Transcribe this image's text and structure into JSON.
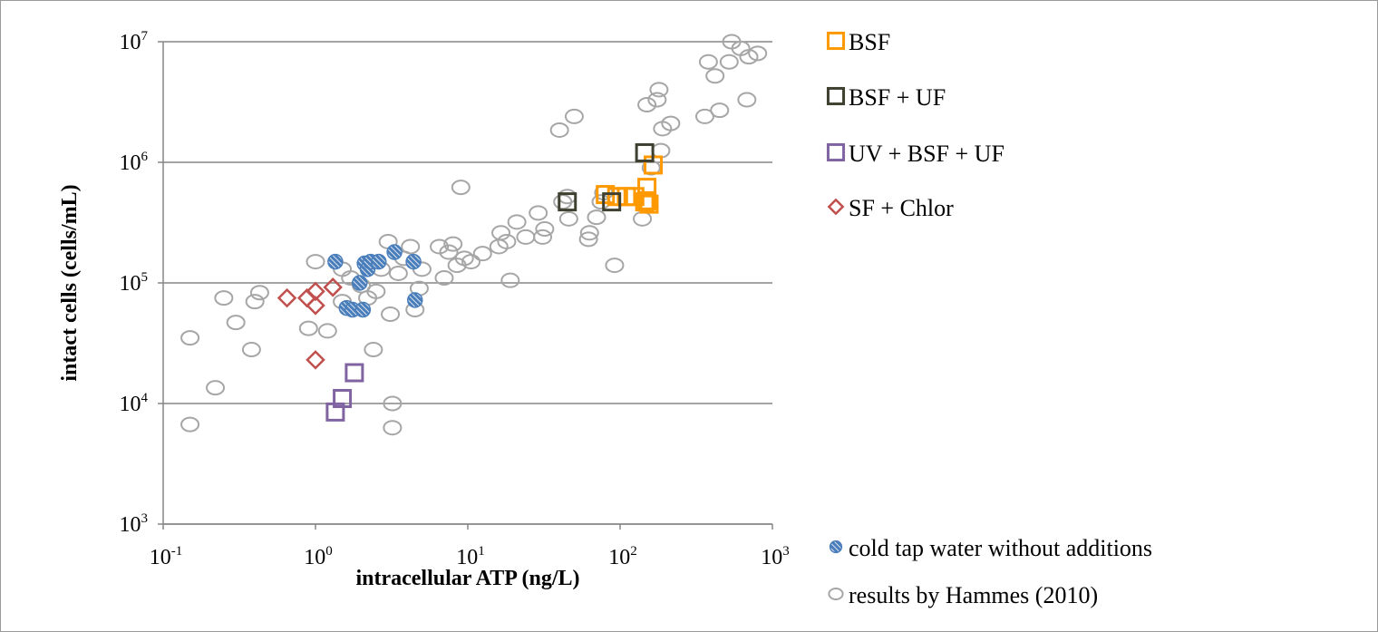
{
  "chart_data": {
    "type": "scatter",
    "xlabel": "intracellular ATP (ng/L)",
    "ylabel": "intact cells (cells/mL)",
    "x_scale": "log",
    "y_scale": "log",
    "xlim": [
      0.1,
      1000
    ],
    "ylim": [
      1000,
      10000000
    ],
    "x_ticks": [
      {
        "base": "10",
        "exp": "-1",
        "value": 0.1
      },
      {
        "base": "10",
        "exp": "0",
        "value": 1
      },
      {
        "base": "10",
        "exp": "1",
        "value": 10
      },
      {
        "base": "10",
        "exp": "2",
        "value": 100
      },
      {
        "base": "10",
        "exp": "3",
        "value": 1000
      }
    ],
    "y_ticks": [
      {
        "base": "10",
        "exp": "3",
        "value": 1000
      },
      {
        "base": "10",
        "exp": "4",
        "value": 10000
      },
      {
        "base": "10",
        "exp": "5",
        "value": 100000
      },
      {
        "base": "10",
        "exp": "6",
        "value": 1000000
      },
      {
        "base": "10",
        "exp": "7",
        "value": 10000000
      }
    ],
    "grid": "horizontal major gridlines",
    "legend_position": "right",
    "series": [
      {
        "name": "results by Hammes (2010)",
        "marker": "hollow-circle",
        "color": "#a6a6a6",
        "points": [
          [
            0.15,
            35000
          ],
          [
            0.15,
            6700
          ],
          [
            0.22,
            13500
          ],
          [
            0.25,
            75000
          ],
          [
            0.3,
            47000
          ],
          [
            0.38,
            28000
          ],
          [
            0.4,
            70000
          ],
          [
            0.43,
            83000
          ],
          [
            0.9,
            42000
          ],
          [
            1.0,
            150000
          ],
          [
            1.2,
            40000
          ],
          [
            1.5,
            130000
          ],
          [
            1.5,
            70000
          ],
          [
            1.7,
            110000
          ],
          [
            2.0,
            95000
          ],
          [
            2.2,
            75000
          ],
          [
            2.4,
            28000
          ],
          [
            2.5,
            85000
          ],
          [
            2.7,
            130000
          ],
          [
            3.0,
            220000
          ],
          [
            3.1,
            55000
          ],
          [
            3.2,
            10000
          ],
          [
            3.2,
            6300
          ],
          [
            3.5,
            120000
          ],
          [
            3.8,
            160000
          ],
          [
            4.2,
            200000
          ],
          [
            4.5,
            60000
          ],
          [
            4.8,
            90000
          ],
          [
            5.0,
            130000
          ],
          [
            6.5,
            200000
          ],
          [
            7.0,
            110000
          ],
          [
            7.5,
            180000
          ],
          [
            8.0,
            210000
          ],
          [
            8.5,
            140000
          ],
          [
            9.0,
            620000
          ],
          [
            9.5,
            160000
          ],
          [
            10.5,
            150000
          ],
          [
            12.5,
            175000
          ],
          [
            16.0,
            200000
          ],
          [
            16.5,
            260000
          ],
          [
            18.0,
            220000
          ],
          [
            19.0,
            105000
          ],
          [
            21.0,
            320000
          ],
          [
            24.0,
            240000
          ],
          [
            29.0,
            380000
          ],
          [
            31.0,
            240000
          ],
          [
            32.0,
            280000
          ],
          [
            40.0,
            1850000
          ],
          [
            42.0,
            470000
          ],
          [
            45.0,
            520000
          ],
          [
            46.0,
            340000
          ],
          [
            50.0,
            2400000
          ],
          [
            62.0,
            230000
          ],
          [
            63.0,
            260000
          ],
          [
            70.0,
            350000
          ],
          [
            75.0,
            470000
          ],
          [
            78.0,
            560000
          ],
          [
            92.0,
            140000
          ],
          [
            140.0,
            340000
          ],
          [
            150.0,
            3000000
          ],
          [
            160.0,
            900000
          ],
          [
            175.0,
            3300000
          ],
          [
            180.0,
            4000000
          ],
          [
            185.0,
            1250000
          ],
          [
            190.0,
            1900000
          ],
          [
            215.0,
            2100000
          ],
          [
            360.0,
            2400000
          ],
          [
            380.0,
            6800000
          ],
          [
            420.0,
            5200000
          ],
          [
            450.0,
            2700000
          ],
          [
            520.0,
            6800000
          ],
          [
            540.0,
            10000000
          ],
          [
            620.0,
            8800000
          ],
          [
            680.0,
            3300000
          ],
          [
            700.0,
            7500000
          ],
          [
            800.0,
            8000000
          ]
        ]
      },
      {
        "name": "cold tap water without additions",
        "marker": "hatched-circle",
        "color": "#4a7ebb",
        "points": [
          [
            1.35,
            150000
          ],
          [
            1.6,
            62000
          ],
          [
            1.75,
            60000
          ],
          [
            1.95,
            100000
          ],
          [
            2.05,
            60000
          ],
          [
            2.1,
            145000
          ],
          [
            2.2,
            130000
          ],
          [
            2.3,
            150000
          ],
          [
            2.6,
            150000
          ],
          [
            3.3,
            180000
          ],
          [
            4.4,
            150000
          ],
          [
            4.5,
            72000
          ]
        ]
      },
      {
        "name": "BSF",
        "marker": "hollow-square",
        "color": "#ff9900",
        "points": [
          [
            80.0,
            540000
          ],
          [
            95.0,
            520000
          ],
          [
            110.0,
            520000
          ],
          [
            125.0,
            520000
          ],
          [
            145.0,
            470000
          ],
          [
            150.0,
            480000
          ],
          [
            150.0,
            620000
          ],
          [
            155.0,
            450000
          ],
          [
            165.0,
            950000
          ]
        ]
      },
      {
        "name": "BSF + UF",
        "marker": "hollow-square",
        "color": "#404030",
        "points": [
          [
            45.0,
            470000
          ],
          [
            88.0,
            470000
          ],
          [
            145.0,
            1200000
          ]
        ]
      },
      {
        "name": "UV + BSF + UF",
        "marker": "hollow-square",
        "color": "#8064a2",
        "points": [
          [
            1.35,
            8500
          ],
          [
            1.5,
            11000
          ],
          [
            1.8,
            18000
          ]
        ]
      },
      {
        "name": "SF + Chlor",
        "marker": "hollow-diamond",
        "color": "#c0504d",
        "points": [
          [
            0.65,
            75000
          ],
          [
            0.88,
            75000
          ],
          [
            1.0,
            85000
          ],
          [
            1.0,
            65000
          ],
          [
            1.3,
            92000
          ],
          [
            1.0,
            23000
          ]
        ]
      }
    ],
    "legend": [
      {
        "label": "BSF",
        "marker": "hollow-square",
        "color": "#ff9900"
      },
      {
        "label": "BSF + UF",
        "marker": "hollow-square",
        "color": "#404030"
      },
      {
        "label": "UV + BSF + UF",
        "marker": "hollow-square",
        "color": "#8064a2"
      },
      {
        "label": "SF + Chlor",
        "marker": "hollow-diamond",
        "color": "#c0504d"
      },
      {
        "label": "cold tap water without additions",
        "marker": "hatched-circle",
        "color": "#4a7ebb"
      },
      {
        "label": "results by Hammes (2010)",
        "marker": "hollow-circle",
        "color": "#a6a6a6"
      }
    ]
  }
}
